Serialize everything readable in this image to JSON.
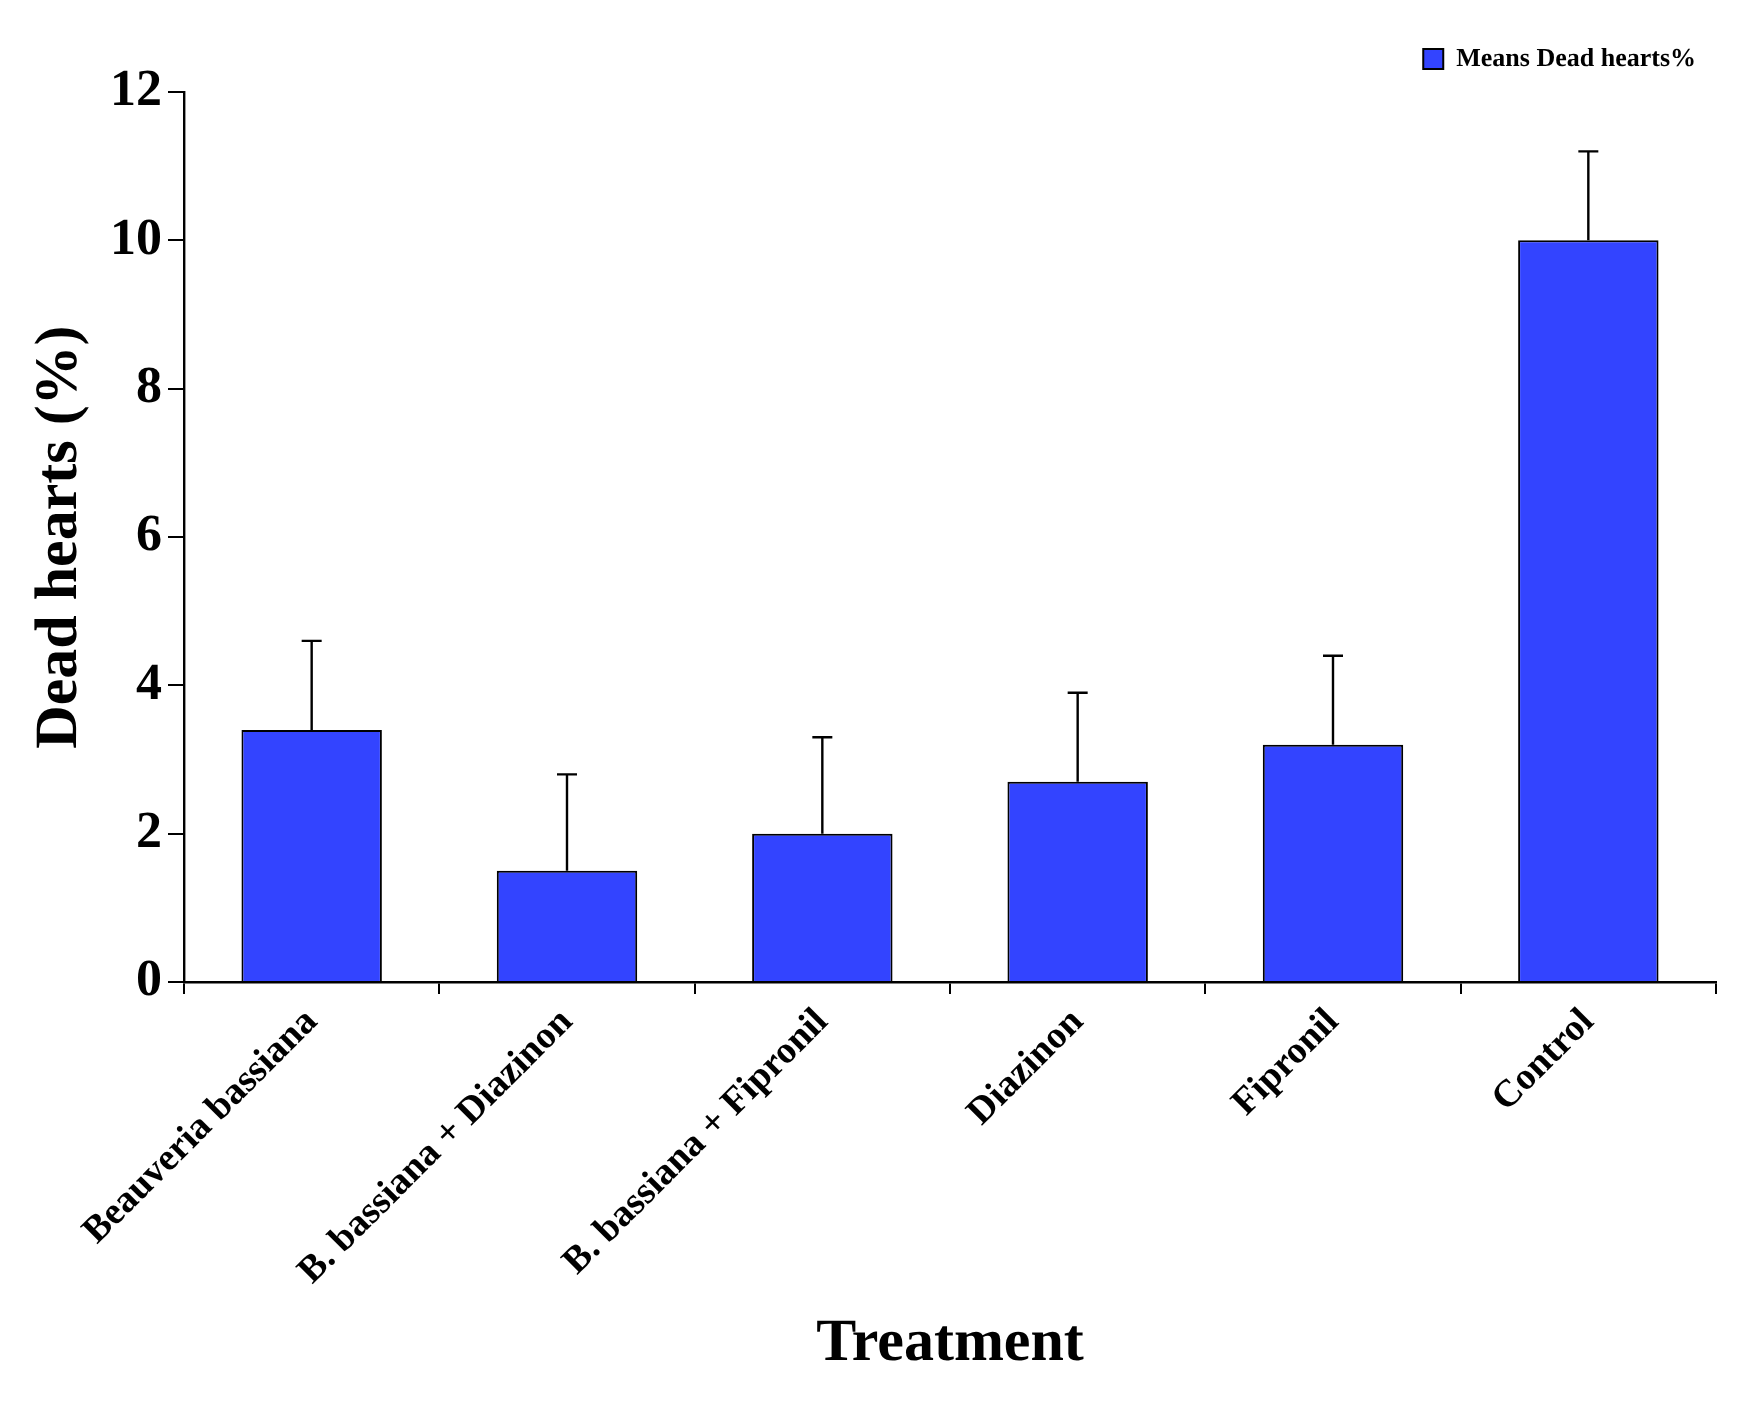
{
  "chart_data": {
    "type": "bar",
    "xlabel": "Treatment",
    "ylabel": "Dead hearts (%)",
    "categories": [
      "Beauveria bassiana",
      "B. bassiana + Diazinon",
      "B. bassiana + Fipronil",
      "Diazinon",
      "Fipronil",
      "Control"
    ],
    "series": [
      {
        "name": "Means Dead hearts%",
        "color": "#3344ff",
        "values": [
          3.4,
          1.5,
          2.0,
          2.7,
          3.2,
          10.0
        ],
        "errors": [
          [
            3.4,
            4.6
          ],
          [
            1.5,
            2.8
          ],
          [
            2.0,
            3.3
          ],
          [
            2.7,
            3.9
          ],
          [
            3.2,
            4.4
          ],
          [
            10.0,
            11.2
          ]
        ]
      }
    ],
    "ylim": [
      0,
      12
    ],
    "yticks": [
      0,
      2,
      4,
      6,
      8,
      10,
      12
    ],
    "grid": false,
    "legend": "top right"
  }
}
